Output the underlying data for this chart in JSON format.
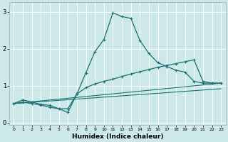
{
  "xlabel": "Humidex (Indice chaleur)",
  "bg_color": "#cce8e8",
  "line_color": "#1a7070",
  "grid_color": "#ffffff",
  "xlim": [
    -0.5,
    23.5
  ],
  "ylim": [
    -0.05,
    3.25
  ],
  "yticks": [
    0,
    1,
    2,
    3
  ],
  "xticks": [
    0,
    1,
    2,
    3,
    4,
    5,
    6,
    7,
    8,
    9,
    10,
    11,
    12,
    13,
    14,
    15,
    16,
    17,
    18,
    19,
    20,
    21,
    22,
    23
  ],
  "curve1_x": [
    0,
    1,
    2,
    3,
    4,
    5,
    6,
    7,
    8,
    9,
    10,
    11,
    12,
    13,
    14,
    15,
    16,
    17,
    18,
    19,
    20,
    21,
    22,
    23
  ],
  "curve1_y": [
    0.52,
    0.62,
    0.56,
    0.5,
    0.47,
    0.38,
    0.28,
    0.78,
    1.35,
    1.92,
    2.25,
    2.97,
    2.87,
    2.82,
    2.22,
    1.87,
    1.62,
    1.52,
    1.42,
    1.37,
    1.12,
    1.07,
    1.07,
    1.07
  ],
  "curve2_x": [
    0,
    1,
    2,
    3,
    4,
    5,
    6,
    7,
    8,
    9,
    10,
    11,
    12,
    13,
    14,
    15,
    16,
    17,
    18,
    19,
    20,
    21,
    22,
    23
  ],
  "curve2_y": [
    0.52,
    0.56,
    0.52,
    0.48,
    0.42,
    0.38,
    0.38,
    0.78,
    0.95,
    1.05,
    1.12,
    1.18,
    1.25,
    1.32,
    1.38,
    1.44,
    1.5,
    1.55,
    1.6,
    1.65,
    1.7,
    1.12,
    1.07,
    1.07
  ],
  "line1_x": [
    0,
    23
  ],
  "line1_y": [
    0.52,
    1.07
  ],
  "line2_x": [
    0,
    23
  ],
  "line2_y": [
    0.52,
    0.92
  ]
}
